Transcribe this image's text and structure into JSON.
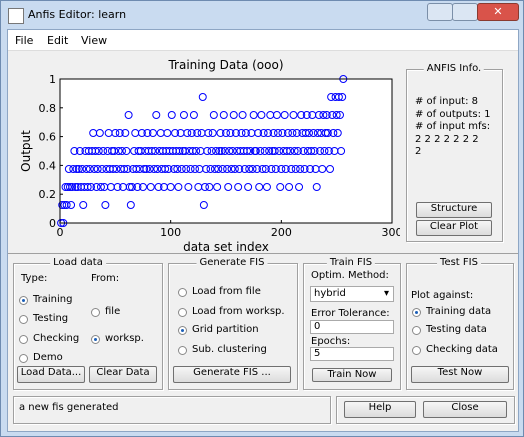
{
  "window": {
    "title": "Anfis Editor: learn",
    "menu": [
      "File",
      "Edit",
      "View"
    ]
  },
  "chart_data": {
    "type": "scatter",
    "title": "Training Data (ooo)",
    "xlabel": "data set index",
    "ylabel": "Output",
    "color": "#0000ff",
    "xlim": [
      0,
      300
    ],
    "ylim": [
      0,
      1
    ],
    "xticks": [
      0,
      100,
      200,
      300
    ],
    "yticks": [
      0,
      0.2,
      0.4,
      0.6,
      0.8,
      1
    ],
    "x": [
      1,
      2,
      3,
      4,
      5,
      6,
      7,
      8,
      9,
      10,
      11,
      12,
      13,
      14,
      15,
      16,
      17,
      18,
      19,
      20,
      21,
      22,
      23,
      24,
      25,
      26,
      27,
      28,
      29,
      30,
      31,
      32,
      33,
      34,
      35,
      36,
      37,
      38,
      39,
      40,
      41,
      42,
      43,
      44,
      45,
      46,
      47,
      48,
      49,
      50,
      51,
      52,
      53,
      54,
      55,
      56,
      57,
      58,
      59,
      60,
      61,
      62,
      63,
      64,
      65,
      66,
      67,
      68,
      69,
      70,
      71,
      72,
      73,
      74,
      75,
      76,
      77,
      78,
      79,
      80,
      81,
      82,
      83,
      84,
      85,
      86,
      87,
      88,
      89,
      90,
      91,
      92,
      93,
      94,
      95,
      96,
      97,
      98,
      99,
      100,
      101,
      102,
      103,
      104,
      105,
      106,
      107,
      108,
      109,
      110,
      111,
      112,
      113,
      114,
      115,
      116,
      117,
      118,
      119,
      120,
      121,
      122,
      123,
      124,
      125,
      126,
      127,
      128,
      129,
      130,
      131,
      132,
      133,
      134,
      135,
      136,
      137,
      138,
      139,
      140,
      141,
      142,
      143,
      144,
      145,
      146,
      147,
      148,
      149,
      150,
      151,
      152,
      153,
      154,
      155,
      156,
      157,
      158,
      159,
      160,
      161,
      162,
      163,
      164,
      165,
      166,
      167,
      168,
      169,
      170,
      171,
      172,
      173,
      174,
      175,
      176,
      177,
      178,
      179,
      180,
      181,
      182,
      183,
      184,
      185,
      186,
      187,
      188,
      189,
      190,
      191,
      192,
      193,
      194,
      195,
      196,
      197,
      198,
      199,
      200,
      201,
      202,
      203,
      204,
      205,
      206,
      207,
      208,
      209,
      210,
      211,
      212,
      213,
      214,
      215,
      216,
      217,
      218,
      219,
      220,
      221,
      222,
      223,
      224,
      225,
      226,
      227,
      228,
      229,
      230,
      231,
      232,
      233,
      234,
      235,
      236,
      237,
      238,
      239,
      240,
      241,
      242,
      243,
      244,
      245,
      246,
      247,
      248,
      249,
      250,
      251,
      252,
      253,
      254,
      255,
      256
    ],
    "values": [
      0,
      0.125,
      0,
      0.125,
      0.25,
      0.125,
      0.25,
      0.375,
      0.25,
      0.125,
      0.25,
      0.375,
      0.5,
      0.25,
      0.375,
      0.25,
      0.375,
      0.5,
      0.25,
      0.375,
      0.125,
      0.25,
      0.5,
      0.375,
      0.25,
      0.5,
      0.375,
      0.25,
      0.5,
      0.625,
      0.375,
      0.5,
      0.25,
      0.375,
      0.5,
      0.625,
      0.25,
      0.375,
      0.5,
      0.25,
      0.125,
      0.375,
      0.5,
      0.625,
      0.375,
      0.25,
      0.5,
      0.375,
      0.5,
      0.625,
      0.375,
      0.25,
      0.5,
      0.625,
      0.375,
      0.5,
      0.25,
      0.375,
      0.625,
      0.5,
      0.375,
      0.75,
      0.25,
      0.125,
      0.25,
      0.375,
      0.5,
      0.625,
      0.375,
      0.25,
      0.5,
      0.375,
      0.5,
      0.625,
      0.25,
      0.375,
      0.5,
      0.375,
      0.625,
      0.5,
      0.375,
      0.25,
      0.5,
      0.625,
      0.375,
      0.5,
      0.75,
      0.375,
      0.25,
      0.5,
      0.625,
      0.375,
      0.5,
      0.25,
      0.375,
      0.5,
      0.625,
      0.375,
      0.5,
      0.25,
      0.75,
      0.5,
      0.375,
      0.625,
      0.5,
      0.375,
      0.25,
      0.5,
      0.625,
      0.375,
      0.5,
      0.75,
      0.5,
      0.375,
      0.625,
      0.25,
      0.5,
      0.375,
      0.625,
      0.5,
      0.75,
      0.375,
      0.5,
      0.625,
      0.25,
      0.375,
      0.5,
      0.625,
      0.875,
      0.125,
      0.25,
      0.375,
      0.5,
      0.625,
      0.25,
      0.375,
      0.5,
      0.625,
      0.75,
      0.375,
      0.5,
      0.25,
      0.375,
      0.5,
      0.625,
      0.5,
      0.375,
      0.75,
      0.5,
      0.625,
      0.375,
      0.25,
      0.5,
      0.625,
      0.375,
      0.5,
      0.75,
      0.375,
      0.625,
      0.5,
      0.25,
      0.375,
      0.5,
      0.625,
      0.75,
      0.5,
      0.375,
      0.625,
      0.5,
      0.25,
      0.375,
      0.5,
      0.625,
      0.375,
      0.75,
      0.5,
      0.5,
      0.375,
      0.625,
      0.25,
      0.5,
      0.75,
      0.375,
      0.625,
      0.5,
      0.375,
      0.25,
      0.625,
      0.5,
      0.75,
      0.375,
      0.5,
      0.625,
      0.5,
      0.375,
      0.75,
      0.625,
      0.5,
      0.25,
      0.375,
      0.625,
      0.5,
      0.75,
      0.375,
      0.5,
      0.625,
      0.25,
      0.5,
      0.375,
      0.625,
      0.75,
      0.5,
      0.375,
      0.625,
      0.5,
      0.25,
      0.375,
      0.75,
      0.625,
      0.5,
      0.375,
      0.625,
      0.75,
      0.5,
      0.625,
      0.375,
      0.5,
      0.75,
      0.625,
      0.5,
      0.375,
      0.25,
      0.625,
      0.75,
      0.5,
      0.625,
      0.375,
      0.75,
      0.5,
      0.625,
      0.75,
      0.625,
      0.5,
      0.375,
      0.875,
      0.75,
      0.625,
      0.5,
      0.875,
      0.75,
      0.625,
      0.875,
      0.75,
      0.5,
      0.875,
      1
    ]
  },
  "info": {
    "title": "ANFIS Info.",
    "lines": [
      "# of input: 8",
      "# of outputs: 1",
      "# of input mfs:",
      "2 2 2 2 2 2 2",
      "2"
    ],
    "buttons": [
      "Structure",
      "Clear Plot"
    ]
  },
  "load_data": {
    "title": "Load data",
    "type_label": "Type:",
    "from_label": "From:",
    "type_options": [
      "Training",
      "Testing",
      "Checking",
      "Demo"
    ],
    "type_selected": 0,
    "from_options": [
      "file",
      "worksp."
    ],
    "from_selected": 1,
    "buttons": [
      "Load Data...",
      "Clear Data"
    ]
  },
  "generate_fis": {
    "title": "Generate FIS",
    "options": [
      "Load from file",
      "Load from worksp.",
      "Grid partition",
      "Sub. clustering"
    ],
    "selected": 2,
    "button": "Generate FIS ..."
  },
  "train_fis": {
    "title": "Train FIS",
    "method_label": "Optim. Method:",
    "method": "hybrid",
    "tolerance_label": "Error Tolerance:",
    "tolerance": 0,
    "epochs_label": "Epochs:",
    "epochs": 5,
    "button": "Train Now"
  },
  "test_fis": {
    "title": "Test FIS",
    "label": "Plot against:",
    "options": [
      "Training data",
      "Testing data",
      "Checking data"
    ],
    "selected": 0,
    "button": "Test Now"
  },
  "status": "a new fis generated",
  "footer_buttons": [
    "Help",
    "Close"
  ]
}
